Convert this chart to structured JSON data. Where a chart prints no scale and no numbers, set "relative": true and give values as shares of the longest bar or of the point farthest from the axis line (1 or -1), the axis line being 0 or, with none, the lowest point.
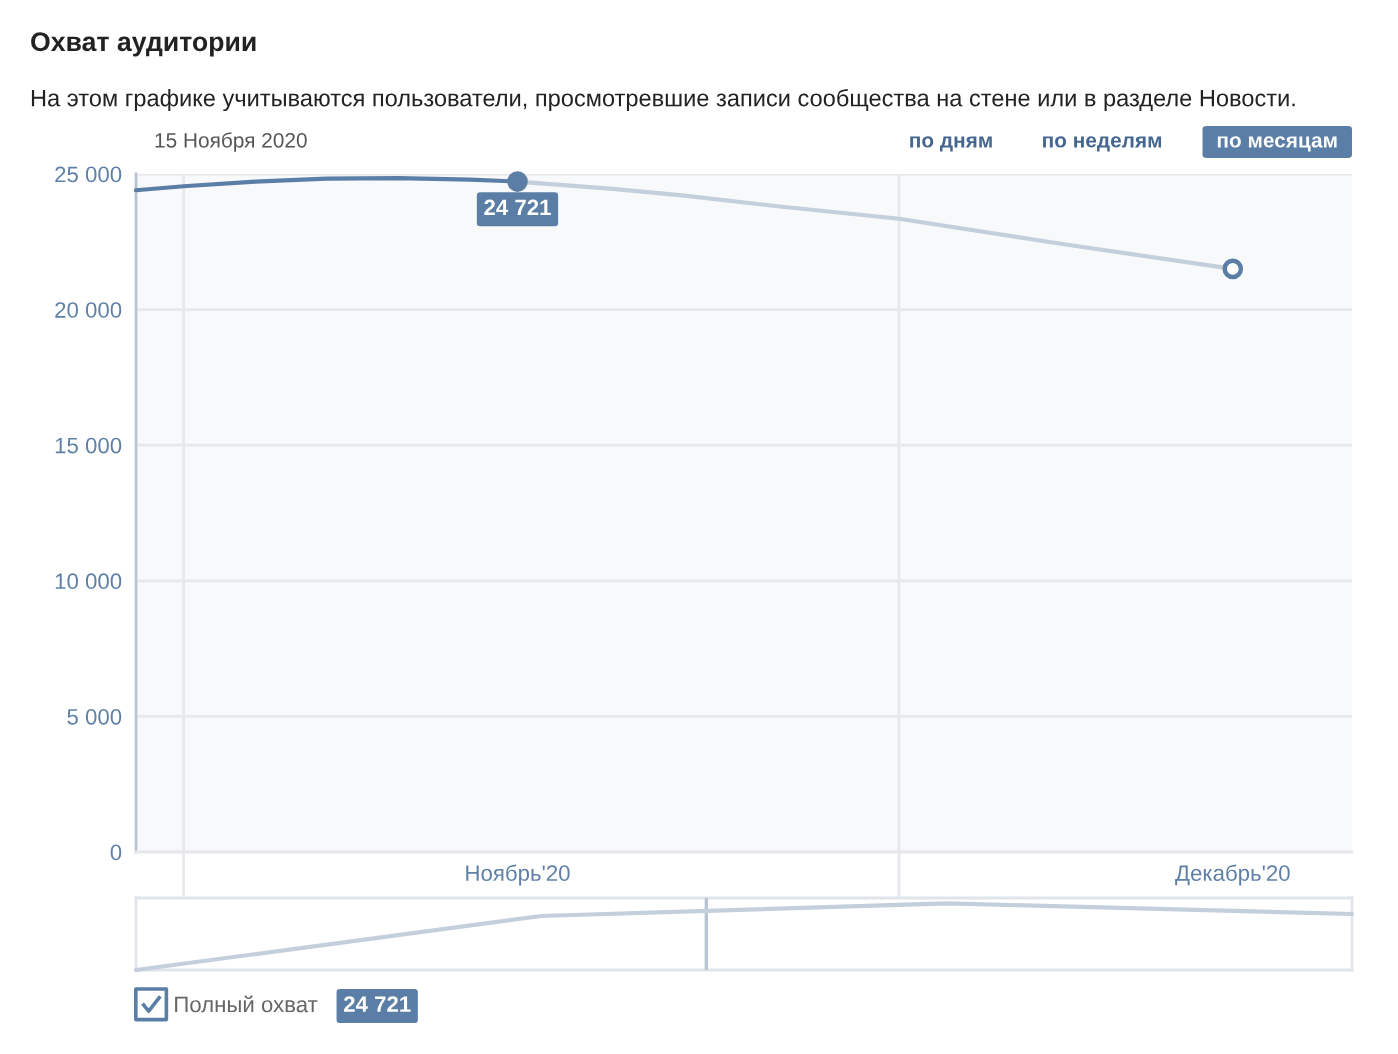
{
  "chart_data": [
    {
      "type": "line",
      "title": "Охват аудитории",
      "subtitle": "На этом графике учитываются пользователи, просмотревшие записи сообщества на стене или в разделе Новости.",
      "annotations": [
        "15 Ноября 2020",
        "по дням",
        "по неделям",
        "по месяцам",
        "24 721"
      ],
      "xlim": [
        "2020-10-30",
        "2020-12-20"
      ],
      "xticks": [
        {
          "value": "2020-11-01",
          "label": null
        },
        {
          "value": "2020-11-15",
          "label": "Ноябрь'20"
        },
        {
          "value": "2020-12-01",
          "label": null
        },
        {
          "value": "2020-12-15",
          "label": "Декабрь'20"
        }
      ],
      "ylim": [
        0,
        25000
      ],
      "yticks": [
        0,
        {
          "value": 5000,
          "label": "5 000"
        },
        {
          "value": 10000,
          "label": "10 000"
        },
        {
          "value": 15000,
          "label": "15 000"
        },
        {
          "value": 20000,
          "label": "20 000"
        },
        {
          "value": 25000,
          "label": "25 000"
        }
      ],
      "grid": true,
      "legend": "bottom",
      "series": [
        {
          "name": "Полный охват",
          "type": "line",
          "color": "#5b7ea6",
          "x": [
            "2020-10-30",
            "2020-11-01",
            "2020-11-04",
            "2020-11-07",
            "2020-11-10",
            "2020-11-13",
            "2020-11-15"
          ],
          "values": [
            24400,
            24550,
            24720,
            24830,
            24850,
            24790,
            24721
          ]
        },
        {
          "type": "line",
          "color": "#c3cfdc",
          "x": [
            "2020-11-15",
            "2020-11-19",
            "2020-11-22",
            "2020-11-26",
            "2020-12-01",
            "2020-12-08",
            "2020-12-15"
          ],
          "values": [
            24721,
            24450,
            24200,
            23800,
            23350,
            22400,
            21500
          ]
        },
        {
          "type": "scatter",
          "color": "#5b7ea6",
          "colors": [
            "#5b7ea6",
            "#ffffff"
          ],
          "marker": "circle",
          "x": [
            "2020-11-15",
            "2020-12-15"
          ],
          "values": [
            24721,
            21500
          ],
          "value_labels": [
            "24 721",
            null
          ]
        }
      ]
    },
    {
      "type": "line",
      "relative": true,
      "categories": [
        null,
        null,
        null,
        null
      ],
      "series": [
        {
          "color": "#c3cfdc",
          "values": [
            0,
            0.81,
            1,
            0.84
          ]
        }
      ]
    }
  ]
}
